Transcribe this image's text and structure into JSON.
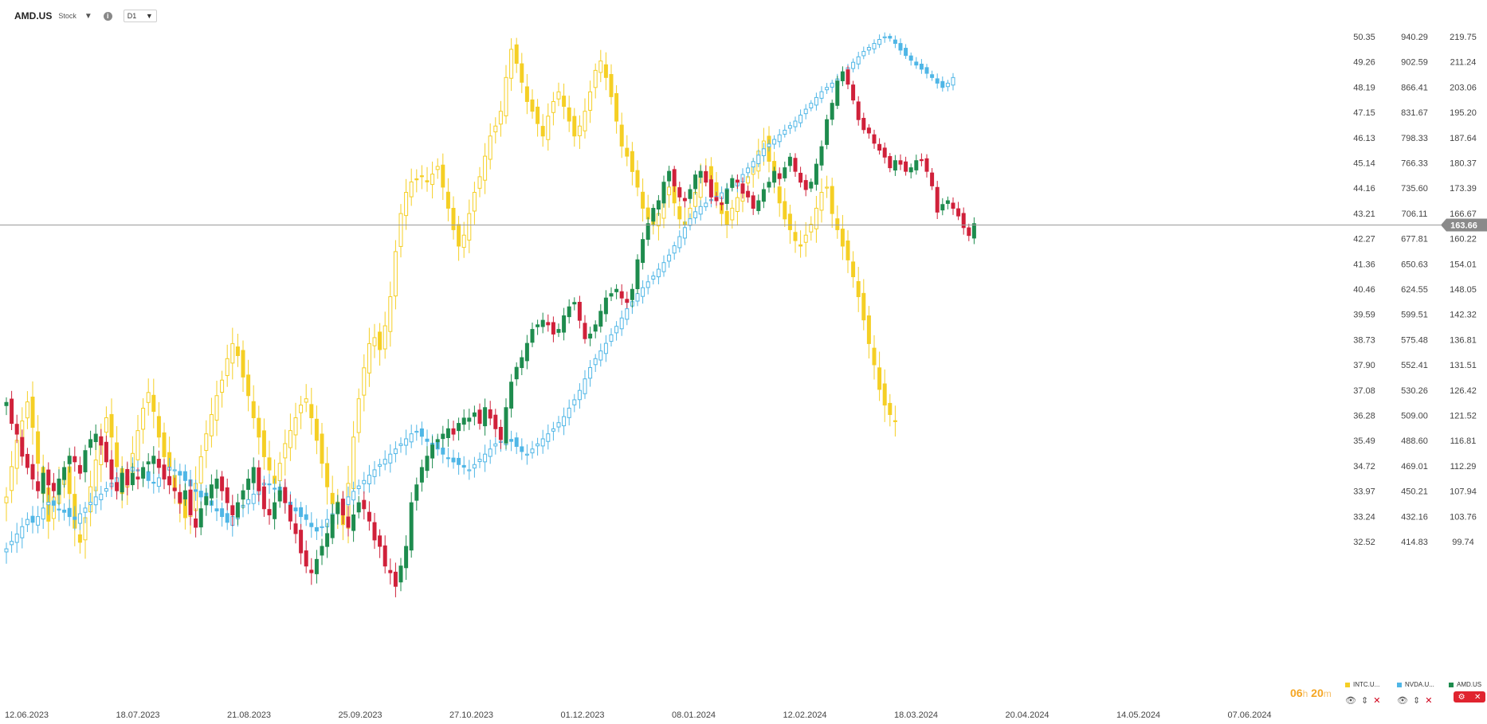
{
  "header": {
    "symbol": "AMD.US",
    "type": "Stock",
    "interval": "D1"
  },
  "countdown": {
    "hours": "06",
    "minutes": "20"
  },
  "legend": [
    {
      "name": "INTC.U...",
      "color": "#f5cf25"
    },
    {
      "name": "NVDA.U...",
      "color": "#4fb6e6"
    },
    {
      "name": "AMD.US",
      "color": "#1e8c4e"
    }
  ],
  "colors": {
    "up": "#1e8c4e",
    "down": "#d0213a",
    "intc": "#f5cf25",
    "nvda": "#4fb6e6",
    "price_line": "#9a9a9a",
    "price_tag": "#8a8a8a"
  },
  "chart_data": {
    "type": "candlestick",
    "x_ticks": [
      "12.06.2023",
      "18.07.2023",
      "21.08.2023",
      "25.09.2023",
      "27.10.2023",
      "01.12.2023",
      "08.01.2024",
      "12.02.2024",
      "18.03.2024",
      "20.04.2024",
      "14.05.2024",
      "07.06.2024"
    ],
    "axes": {
      "intc": [
        "50.35",
        "49.26",
        "48.19",
        "47.15",
        "46.13",
        "45.14",
        "44.16",
        "43.21",
        "42.27",
        "41.36",
        "40.46",
        "39.59",
        "38.73",
        "37.90",
        "37.08",
        "36.28",
        "35.49",
        "34.72",
        "33.97",
        "33.24",
        "32.52"
      ],
      "nvda": [
        "940.29",
        "902.59",
        "866.41",
        "831.67",
        "798.33",
        "766.33",
        "735.60",
        "706.11",
        "677.81",
        "650.63",
        "624.55",
        "599.51",
        "575.48",
        "552.41",
        "530.26",
        "509.00",
        "488.60",
        "469.01",
        "450.21",
        "432.16",
        "414.83"
      ],
      "amd": [
        "219.75",
        "211.24",
        "203.06",
        "195.20",
        "187.64",
        "180.37",
        "173.39",
        "166.67",
        "160.22",
        "154.01",
        "148.05",
        "142.32",
        "136.81",
        "131.51",
        "126.42",
        "121.52",
        "116.81",
        "112.29",
        "107.94",
        "103.76",
        "99.74"
      ]
    },
    "current_price": "163.66",
    "series": [
      {
        "name": "AMD.US",
        "approx_close": [
          124,
          120,
          118,
          114,
          112,
          110,
          108,
          111,
          109,
          108,
          110,
          112,
          114,
          113,
          111,
          115,
          117,
          118,
          116,
          113,
          110,
          108,
          111,
          109,
          111,
          110,
          112,
          113,
          114,
          112,
          110,
          109,
          108,
          106,
          108,
          104,
          102,
          105,
          107,
          109,
          110,
          108,
          106,
          104,
          106,
          108,
          110,
          112,
          108,
          105,
          104,
          106,
          108,
          106,
          103,
          101,
          98,
          96,
          95,
          97,
          99,
          101,
          104,
          106,
          104,
          102,
          104,
          106,
          105,
          103,
          100,
          99,
          96,
          95,
          93,
          96,
          99,
          106,
          109,
          112,
          114,
          116,
          117,
          118,
          119,
          118,
          120,
          121,
          121,
          122,
          120,
          123,
          121,
          119,
          117,
          123,
          128,
          131,
          133,
          136,
          139,
          140,
          141,
          140,
          138,
          139,
          142,
          144,
          145,
          141,
          137,
          138,
          140,
          143,
          146,
          147,
          148,
          146,
          145,
          148,
          155,
          160,
          164,
          168,
          170,
          175,
          178,
          174,
          171,
          170,
          173,
          177,
          178,
          175,
          171,
          170,
          169,
          173,
          176,
          175,
          172,
          171,
          168,
          170,
          173,
          175,
          178,
          176,
          179,
          182,
          178,
          175,
          173,
          175,
          180,
          185,
          193,
          198,
          205,
          208,
          204,
          199,
          193,
          190,
          189,
          186,
          184,
          182,
          179,
          181,
          180,
          178,
          179,
          181,
          181,
          178,
          174,
          167,
          169,
          170,
          168,
          166,
          163,
          161,
          164
        ]
      },
      {
        "name": "INTC.U...",
        "approx_close": [
          33.8,
          34.7,
          35.5,
          36.1,
          36.7,
          35.9,
          34.8,
          33.9,
          33.1,
          33.8,
          34.2,
          34.5,
          33.9,
          32.9,
          32.5,
          33.2,
          34.1,
          34.9,
          35.6,
          36.2,
          35.6,
          34.7,
          33.9,
          34.4,
          35.1,
          35.8,
          36.5,
          37.0,
          36.4,
          35.6,
          35.0,
          34.6,
          34.0,
          33.6,
          33.2,
          33.6,
          34.2,
          35.0,
          35.7,
          36.3,
          36.9,
          37.4,
          38.1,
          38.6,
          38.2,
          37.5,
          36.9,
          36.2,
          35.6,
          35.0,
          34.6,
          34.2,
          34.8,
          35.4,
          35.8,
          36.2,
          36.6,
          36.8,
          36.2,
          35.5,
          34.8,
          34.1,
          33.6,
          33.4,
          33.0,
          34.2,
          35.6,
          36.8,
          37.8,
          38.6,
          38.8,
          38.4,
          39.2,
          40.2,
          41.8,
          43.2,
          44.0,
          44.4,
          44.5,
          44.6,
          44.4,
          44.7,
          45.0,
          44.2,
          43.4,
          42.6,
          42.0,
          42.4,
          43.2,
          44.0,
          44.6,
          45.4,
          46.2,
          46.6,
          47.2,
          48.6,
          49.8,
          49.2,
          48.4,
          47.6,
          47.2,
          46.7,
          46.2,
          47.0,
          47.6,
          48.0,
          47.4,
          46.8,
          46.2,
          46.6,
          47.2,
          48.0,
          48.9,
          49.3,
          48.6,
          47.8,
          46.8,
          45.8,
          45.4,
          44.8,
          44.2,
          43.4,
          43.0,
          42.8,
          43.2,
          43.8,
          44.2,
          43.6,
          43.0,
          42.8,
          43.4,
          44.0,
          44.6,
          44.8,
          44.4,
          43.8,
          43.2,
          42.8,
          43.4,
          43.8,
          44.2,
          44.6,
          45.0,
          45.6,
          46.0,
          45.2,
          44.4,
          43.6,
          43.0,
          42.6,
          42.2,
          42.0,
          42.4,
          42.8,
          43.4,
          44.0,
          44.2,
          43.2,
          42.6,
          42.0,
          41.5,
          40.9,
          40.2,
          39.4,
          38.6,
          37.9,
          37.1,
          36.6,
          36.3,
          36.1
        ]
      },
      {
        "name": "NVDA.U...",
        "approx_close": [
          410,
          415,
          420,
          425,
          430,
          428,
          432,
          438,
          442,
          440,
          437,
          435,
          432,
          430,
          434,
          438,
          442,
          446,
          448,
          452,
          456,
          460,
          462,
          465,
          468,
          466,
          462,
          458,
          456,
          460,
          464,
          468,
          466,
          462,
          458,
          454,
          450,
          446,
          444,
          440,
          436,
          432,
          428,
          432,
          436,
          440,
          444,
          448,
          452,
          456,
          455,
          452,
          448,
          444,
          440,
          436,
          432,
          430,
          425,
          422,
          425,
          430,
          434,
          438,
          442,
          446,
          450,
          454,
          458,
          462,
          466,
          470,
          474,
          478,
          482,
          486,
          490,
          494,
          496,
          492,
          488,
          485,
          482,
          478,
          475,
          472,
          470,
          468,
          466,
          470,
          474,
          478,
          482,
          486,
          488,
          490,
          488,
          484,
          480,
          478,
          482,
          486,
          490,
          494,
          498,
          503,
          508,
          515,
          522,
          530,
          540,
          550,
          558,
          565,
          572,
          580,
          588,
          596,
          605,
          612,
          620,
          626,
          632,
          638,
          645,
          652,
          660,
          670,
          680,
          690,
          700,
          708,
          714,
          718,
          722,
          726,
          730,
          735,
          740,
          745,
          752,
          760,
          768,
          776,
          784,
          790,
          796,
          802,
          808,
          814,
          820,
          828,
          836,
          844,
          852,
          860,
          866,
          872,
          878,
          886,
          894,
          902,
          910,
          918,
          924,
          930,
          936,
          940,
          938,
          930,
          920,
          912,
          905,
          898,
          892,
          886,
          880,
          872,
          866,
          872,
          880
        ]
      }
    ]
  }
}
